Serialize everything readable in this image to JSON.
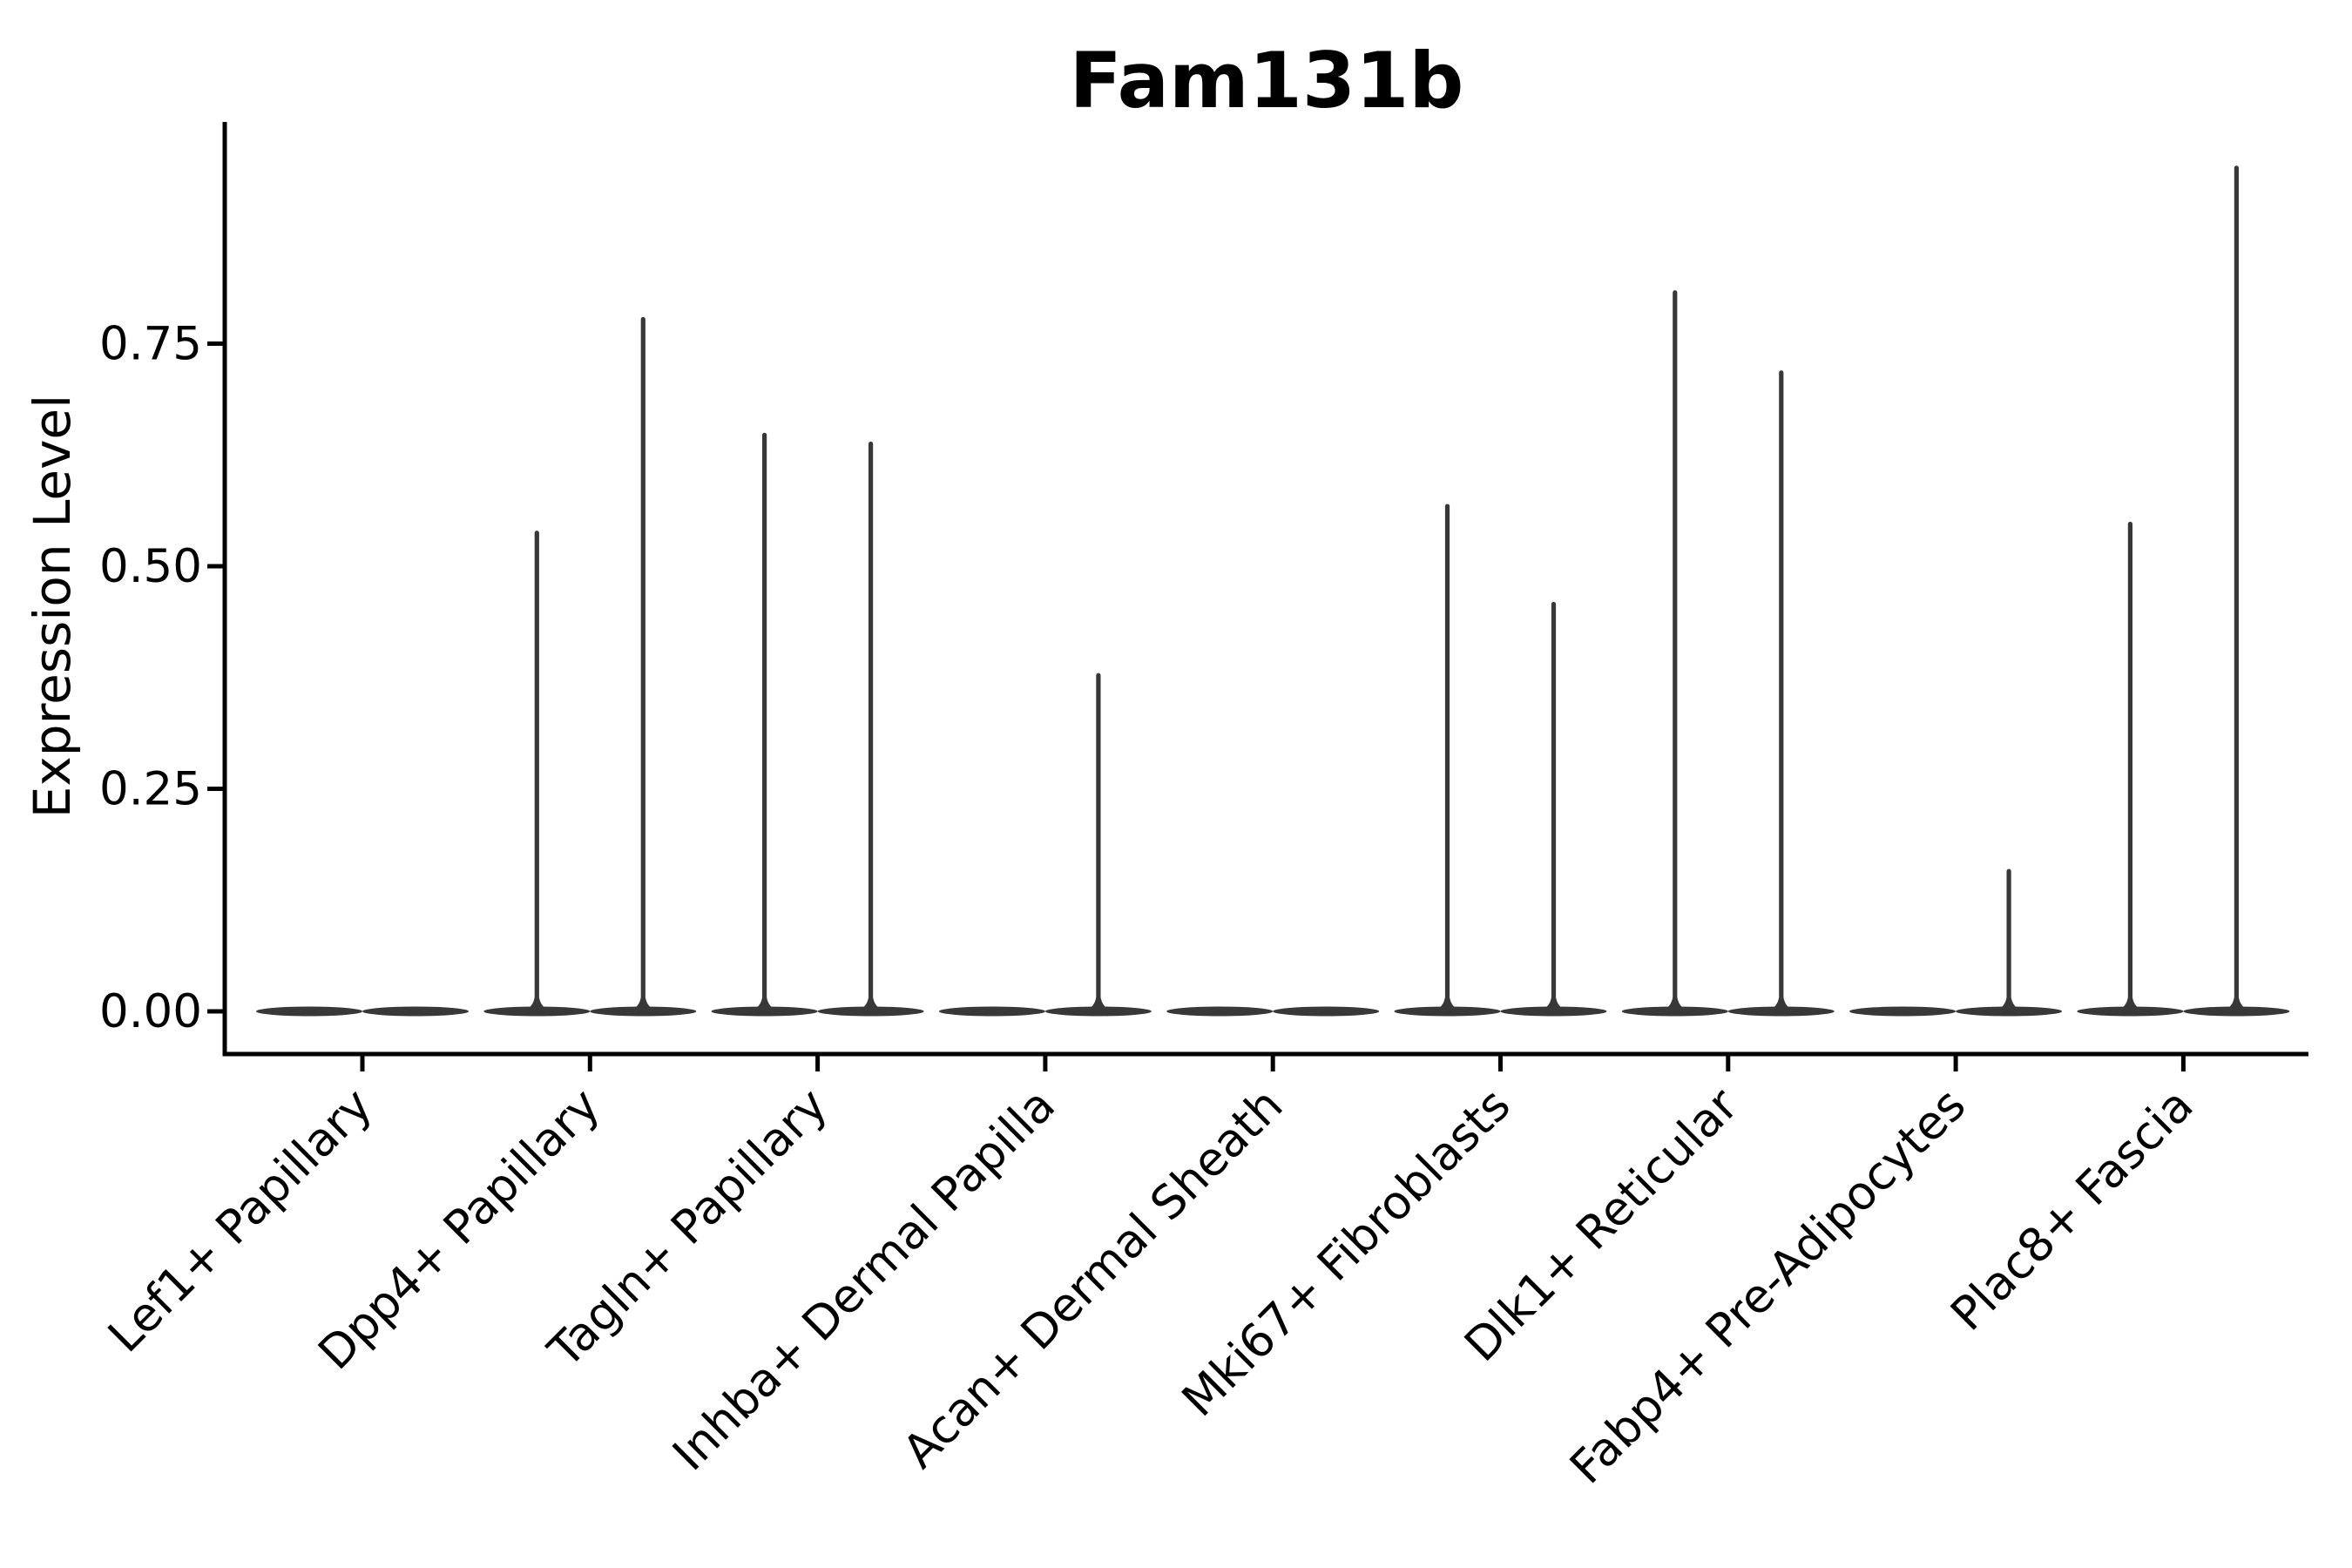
{
  "chart_data": {
    "type": "violin",
    "title": "Fam131b",
    "xlabel": "",
    "ylabel": "Expression Level",
    "ylim": [
      0,
      1.0
    ],
    "grid": false,
    "legend": false,
    "ytick_values": [
      0.0,
      0.25,
      0.5,
      0.75
    ],
    "ytick_labels": [
      "0.00",
      "0.25",
      "0.50",
      "0.75"
    ],
    "categories": [
      "Lef1+ Papillary",
      "Dpp4+ Papillary",
      "Tagln+ Papillary",
      "Inhba+ Dermal Papilla",
      "Acan+ Dermal Sheath",
      "Mki67+ Fibroblasts",
      "Dlk1+ Reticular",
      "Fabp4+ Pre-Adipocytes",
      "Plac8+ Fascia"
    ],
    "violins": [
      {
        "category": "Lef1+ Papillary",
        "group_maxima": [
          0,
          0
        ]
      },
      {
        "category": "Dpp4+ Papillary",
        "group_maxima": [
          0.54,
          0.78
        ]
      },
      {
        "category": "Tagln+ Papillary",
        "group_maxima": [
          0.65,
          0.64
        ]
      },
      {
        "category": "Inhba+ Dermal Papilla",
        "group_maxima": [
          0,
          0.38
        ]
      },
      {
        "category": "Acan+ Dermal Sheath",
        "group_maxima": [
          0,
          0
        ]
      },
      {
        "category": "Mki67+ Fibroblasts",
        "group_maxima": [
          0.57,
          0.46
        ]
      },
      {
        "category": "Dlk1+ Reticular",
        "group_maxima": [
          0.81,
          0.72
        ]
      },
      {
        "category": "Fabp4+ Pre-Adipocytes",
        "group_maxima": [
          0,
          0.16
        ]
      },
      {
        "category": "Plac8+ Fascia",
        "group_maxima": [
          0.55,
          0.95
        ]
      }
    ],
    "colors": {
      "violin": "#383838",
      "axis": "#000000",
      "text": "#000000",
      "background": "#ffffff"
    }
  }
}
